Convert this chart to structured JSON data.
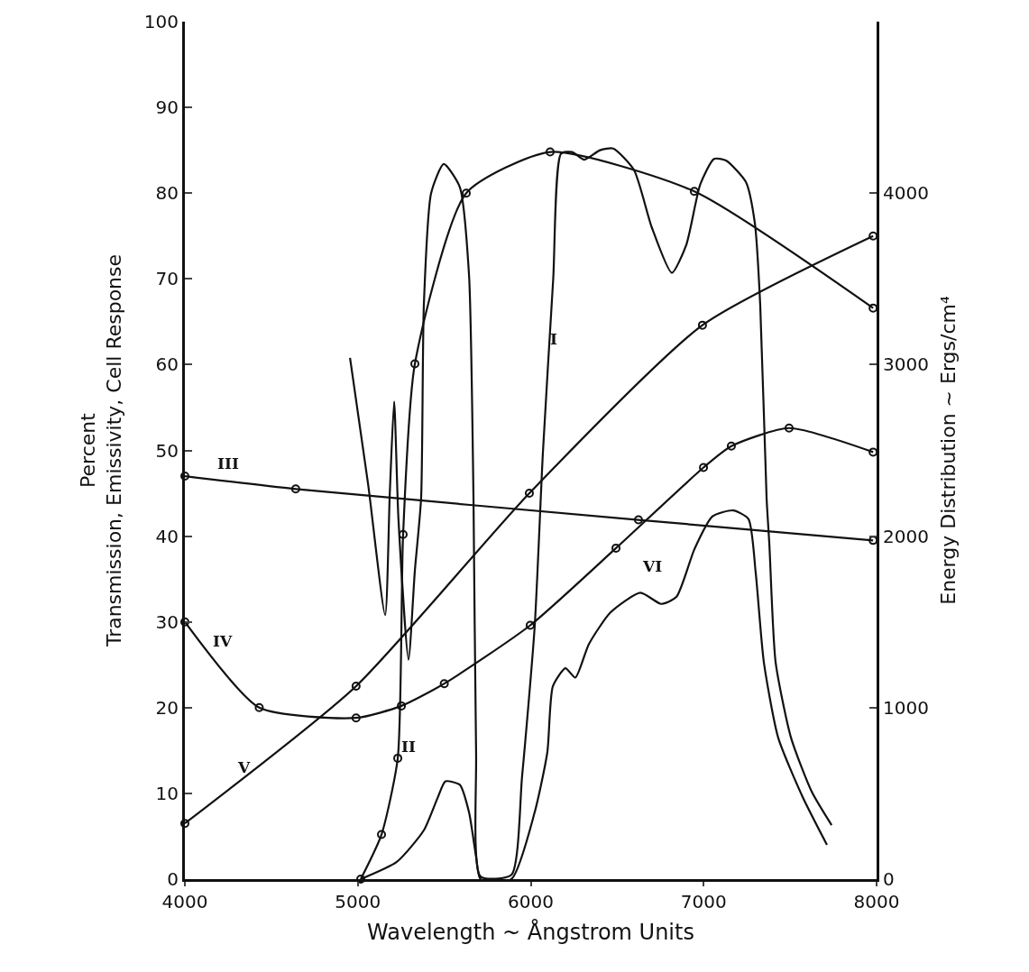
{
  "chart_data": {
    "type": "line",
    "xlabel": "Wavelength ~ Ångstrom Units",
    "ylabel": "Percent\nTransmission, Emissivity, Cell Response",
    "y2label": "Energy Distribution ~ Ergs/cm⁴",
    "xlim": [
      4000,
      8000
    ],
    "xticks": [
      4000,
      5000,
      6000,
      7000,
      8000
    ],
    "ylim": [
      0,
      100
    ],
    "yticks": [
      0,
      10,
      20,
      30,
      40,
      50,
      60,
      70,
      80,
      90,
      100
    ],
    "y2lim": [
      0,
      5000
    ],
    "y2ticks": [
      0,
      1000,
      2000,
      3000,
      4000
    ],
    "legend": false,
    "series": [
      {
        "name": "I",
        "color": "#111111",
        "marker": "none",
        "x": [
          4955,
          5060,
          5158,
          5185,
          5210,
          5235,
          5293,
          5330,
          5366,
          5382,
          5424,
          5497,
          5590,
          5643,
          5669,
          5684,
          5710,
          5888,
          5950,
          6023,
          6070,
          6130,
          6175,
          6240,
          6310,
          6400,
          6477,
          6597,
          6700,
          6816,
          6900,
          6980,
          7060,
          7129,
          7244,
          7296,
          7327,
          7364,
          7380,
          7416,
          7505,
          7625,
          7740
        ],
        "values": [
          60.8,
          46,
          30.8,
          45,
          55.7,
          42,
          25.6,
          36,
          44.4,
          67,
          80,
          83.4,
          80.7,
          70.5,
          44.4,
          14.8,
          0.3,
          0.5,
          12,
          29.5,
          49.6,
          70,
          84.6,
          84.8,
          83.9,
          85,
          85.2,
          82.7,
          76,
          70.7,
          74,
          81,
          84,
          83.8,
          81.3,
          76.5,
          67,
          44.4,
          39,
          25.3,
          16.5,
          10.2,
          6.3
        ]
      },
      {
        "name": "II",
        "color": "#111111",
        "marker": "circle",
        "x": [
          5017,
          5137,
          5231,
          5262,
          5330,
          5627,
          6112,
          6946,
          7980
        ],
        "values": [
          0,
          5.2,
          14.1,
          40.2,
          60.1,
          80,
          84.8,
          80.2,
          66.6
        ]
      },
      {
        "name": "III",
        "color": "#111111",
        "marker": "circle",
        "x": [
          4000,
          4641,
          6623,
          7980
        ],
        "values": [
          47,
          45.5,
          41.9,
          39.5
        ]
      },
      {
        "name": "IV",
        "color": "#111111",
        "marker": "circle",
        "x": [
          4000,
          4430,
          4990,
          5252,
          5500,
          5997,
          6493,
          6999,
          7160,
          7494,
          7980
        ],
        "values": [
          30,
          20,
          18.8,
          20.2,
          22.8,
          29.6,
          38.6,
          48,
          50.5,
          52.6,
          49.8
        ]
      },
      {
        "name": "V",
        "color": "#111111",
        "marker": "circle",
        "axis": "y2",
        "x": [
          4000,
          4990,
          5992,
          6993,
          7980
        ],
        "values": [
          325,
          1125,
          2250,
          3230,
          3750
        ]
      },
      {
        "name": "VI",
        "color": "#111111",
        "marker": "none",
        "x": [
          5017,
          5225,
          5382,
          5460,
          5507,
          5590,
          5643,
          5684,
          5710,
          5888,
          6023,
          6096,
          6128,
          6201,
          6258,
          6336,
          6461,
          6634,
          6754,
          6842,
          6947,
          7051,
          7171,
          7259,
          7301,
          7348,
          7431,
          7572,
          7713
        ],
        "values": [
          0,
          2,
          5.7,
          9.4,
          11.4,
          11,
          7.8,
          2.6,
          0,
          0,
          7.8,
          14.8,
          22.5,
          24.6,
          23.5,
          27.4,
          31.1,
          33.4,
          32.1,
          32.9,
          38.5,
          42.3,
          43,
          42,
          35.7,
          25.3,
          16.5,
          9.6,
          4
        ]
      }
    ]
  }
}
